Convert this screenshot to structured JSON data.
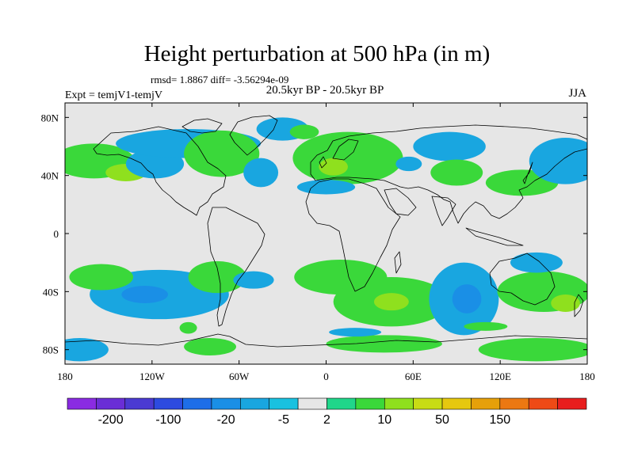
{
  "title": "Height perturbation at 500 hPa (in m)",
  "stats_line": "rmsd= 1.8867  diff= -3.56294e-09",
  "left_label": "Expt = temjV1-temjV",
  "center_label": "20.5kyr BP - 20.5kyr BP",
  "right_label": "JJA",
  "chart_data": {
    "type": "heatmap",
    "projection": "cylindrical equidistant",
    "xlim": [
      -180,
      180
    ],
    "ylim": [
      -90,
      90
    ],
    "x_ticks": [
      -180,
      -120,
      -60,
      0,
      60,
      120,
      180
    ],
    "x_tick_labels": [
      "180",
      "120W",
      "60W",
      "0",
      "60E",
      "120E",
      "180"
    ],
    "y_ticks": [
      80,
      40,
      0,
      -40,
      -80
    ],
    "y_tick_labels": [
      "80N",
      "40N",
      "0",
      "40S",
      "80S"
    ],
    "colorbar": {
      "colors": [
        "#8a2be2",
        "#6a2ed6",
        "#4b3ad2",
        "#2d4be0",
        "#1e6ee8",
        "#1a8fe6",
        "#19a6e0",
        "#19c1e0",
        "#e6e6e6",
        "#20d68a",
        "#3ad83a",
        "#8fe01e",
        "#c8dc14",
        "#e6c80f",
        "#e6a00a",
        "#ec7812",
        "#ee4a16",
        "#e81e1e"
      ],
      "labels": [
        "-200",
        "-100",
        "-20",
        "-5",
        "2",
        "10",
        "50",
        "150"
      ]
    },
    "anomalies": [
      {
        "lon": -160,
        "lat": 50,
        "rx": 28,
        "ry": 12,
        "level": 3
      },
      {
        "lon": -138,
        "lat": 42,
        "rx": 14,
        "ry": 6,
        "level": 4
      },
      {
        "lon": -118,
        "lat": 48,
        "rx": 20,
        "ry": 10,
        "level": -2
      },
      {
        "lon": -95,
        "lat": 62,
        "rx": 50,
        "ry": 10,
        "level": -2
      },
      {
        "lon": -72,
        "lat": 55,
        "rx": 26,
        "ry": 16,
        "level": 3
      },
      {
        "lon": -30,
        "lat": 72,
        "rx": 18,
        "ry": 8,
        "level": -2
      },
      {
        "lon": -15,
        "lat": 70,
        "rx": 10,
        "ry": 5,
        "level": 3
      },
      {
        "lon": 15,
        "lat": 52,
        "rx": 38,
        "ry": 18,
        "level": 3
      },
      {
        "lon": 5,
        "lat": 46,
        "rx": 10,
        "ry": 6,
        "level": 4
      },
      {
        "lon": -45,
        "lat": 42,
        "rx": 12,
        "ry": 10,
        "level": -2
      },
      {
        "lon": 0,
        "lat": 32,
        "rx": 20,
        "ry": 5,
        "level": -2
      },
      {
        "lon": 57,
        "lat": 48,
        "rx": 9,
        "ry": 5,
        "level": -2
      },
      {
        "lon": 85,
        "lat": 60,
        "rx": 25,
        "ry": 10,
        "level": -2
      },
      {
        "lon": 90,
        "lat": 42,
        "rx": 18,
        "ry": 9,
        "level": 3
      },
      {
        "lon": 135,
        "lat": 35,
        "rx": 25,
        "ry": 9,
        "level": 3
      },
      {
        "lon": 165,
        "lat": 50,
        "rx": 25,
        "ry": 16,
        "level": -2
      },
      {
        "lon": -115,
        "lat": -42,
        "rx": 48,
        "ry": 17,
        "level": -2
      },
      {
        "lon": -125,
        "lat": -42,
        "rx": 16,
        "ry": 6,
        "level": -3
      },
      {
        "lon": -155,
        "lat": -30,
        "rx": 22,
        "ry": 9,
        "level": 3
      },
      {
        "lon": -75,
        "lat": -30,
        "rx": 20,
        "ry": 11,
        "level": 3
      },
      {
        "lon": -50,
        "lat": -32,
        "rx": 14,
        "ry": 6,
        "level": -2
      },
      {
        "lon": 10,
        "lat": -30,
        "rx": 32,
        "ry": 12,
        "level": 3
      },
      {
        "lon": 45,
        "lat": -47,
        "rx": 40,
        "ry": 17,
        "level": 3
      },
      {
        "lon": 45,
        "lat": -47,
        "rx": 12,
        "ry": 6,
        "level": 4
      },
      {
        "lon": 95,
        "lat": -45,
        "rx": 24,
        "ry": 25,
        "level": -2
      },
      {
        "lon": 97,
        "lat": -45,
        "rx": 10,
        "ry": 10,
        "level": -3
      },
      {
        "lon": 150,
        "lat": -40,
        "rx": 32,
        "ry": 14,
        "level": 3
      },
      {
        "lon": 165,
        "lat": -48,
        "rx": 10,
        "ry": 6,
        "level": 4
      },
      {
        "lon": 145,
        "lat": -20,
        "rx": 18,
        "ry": 7,
        "level": -2
      },
      {
        "lon": -170,
        "lat": -80,
        "rx": 20,
        "ry": 8,
        "level": -2
      },
      {
        "lon": 145,
        "lat": -80,
        "rx": 40,
        "ry": 8,
        "level": 3
      },
      {
        "lon": 40,
        "lat": -76,
        "rx": 40,
        "ry": 6,
        "level": 3
      },
      {
        "lon": 20,
        "lat": -68,
        "rx": 18,
        "ry": 3,
        "level": -2
      },
      {
        "lon": -80,
        "lat": -78,
        "rx": 18,
        "ry": 6,
        "level": 3
      },
      {
        "lon": -95,
        "lat": -65,
        "rx": 6,
        "ry": 4,
        "level": 3
      },
      {
        "lon": 110,
        "lat": -64,
        "rx": 15,
        "ry": 3,
        "level": 3
      }
    ]
  }
}
